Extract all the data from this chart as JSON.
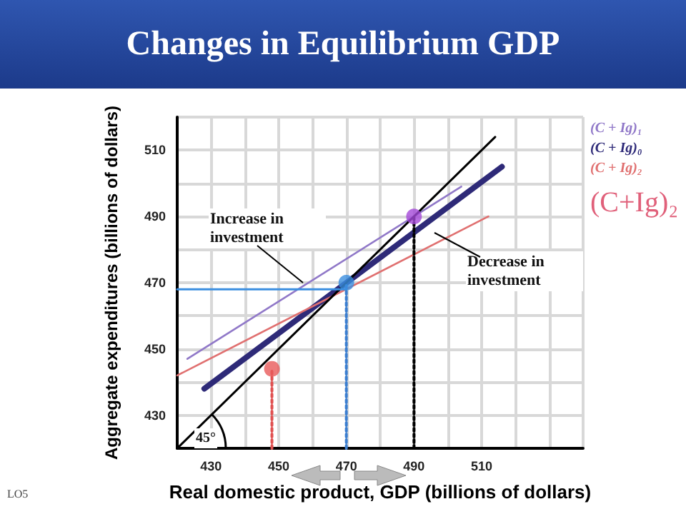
{
  "chart_data": {
    "type": "line",
    "title": "Changes in Equilibrium GDP",
    "xlabel": "Real domestic product, GDP (billions of dollars)",
    "ylabel": "Aggregate expenditures (billions of dollars)",
    "xlim": [
      420,
      540
    ],
    "ylim": [
      420,
      520
    ],
    "xticks": [
      {
        "value": 420,
        "label": null
      },
      430,
      {
        "value": 440,
        "label": null
      },
      450,
      {
        "value": 460,
        "label": null
      },
      470,
      {
        "value": 480,
        "label": null
      },
      490,
      {
        "value": 500,
        "label": null
      },
      510,
      {
        "value": 520,
        "label": null
      },
      {
        "value": 530,
        "label": null
      },
      {
        "value": 540,
        "label": null
      }
    ],
    "yticks": [
      {
        "value": 420,
        "label": null
      },
      430,
      {
        "value": 440,
        "label": null
      },
      450,
      {
        "value": 460,
        "label": null
      },
      470,
      {
        "value": 480,
        "label": null
      },
      490,
      {
        "value": 500,
        "label": null
      },
      510,
      {
        "value": 520,
        "label": null
      }
    ],
    "grid": true,
    "legend": false,
    "marker": "none",
    "line_style": "solid",
    "annotations": [
      "Increase in investment",
      "Decrease in investment",
      "45°",
      "(C+Ig)₂",
      "LO5"
    ],
    "series": [
      {
        "name": "(C + Ig)₁",
        "color": "#9078c8",
        "x": [
          423,
          504
        ],
        "values": [
          447,
          499
        ]
      },
      {
        "name": "(C + Ig)₀",
        "color": "#2e2a78",
        "x": [
          428,
          516
        ],
        "values": [
          438,
          505
        ]
      },
      {
        "name": "(C + Ig)₂",
        "color": "#e07070",
        "x": [
          420,
          512
        ],
        "values": [
          442,
          490
        ]
      },
      {
        "color": "#000000",
        "x": [
          420,
          514
        ],
        "values": [
          420,
          514
        ]
      },
      {
        "type": "scatter",
        "marker": "circle",
        "x": [
          448,
          470,
          490
        ],
        "values": [
          444,
          470,
          490
        ],
        "colors": [
          "#e85a5a",
          "#3b8ee0",
          "#a448d8"
        ]
      },
      {
        "color": "#e05050",
        "line_style": "dotted",
        "x": [
          448,
          448
        ],
        "values": [
          420,
          444
        ]
      },
      {
        "color": "#3b7ed0",
        "line_style": "dotted",
        "x": [
          470,
          470
        ],
        "values": [
          420,
          470
        ]
      },
      {
        "color": "#000000",
        "line_style": "dotted",
        "x": [
          490,
          490
        ],
        "values": [
          420,
          490
        ]
      },
      {
        "color": "#3b8ee0",
        "x": [
          420,
          470
        ],
        "values": [
          468,
          468
        ]
      }
    ]
  }
}
